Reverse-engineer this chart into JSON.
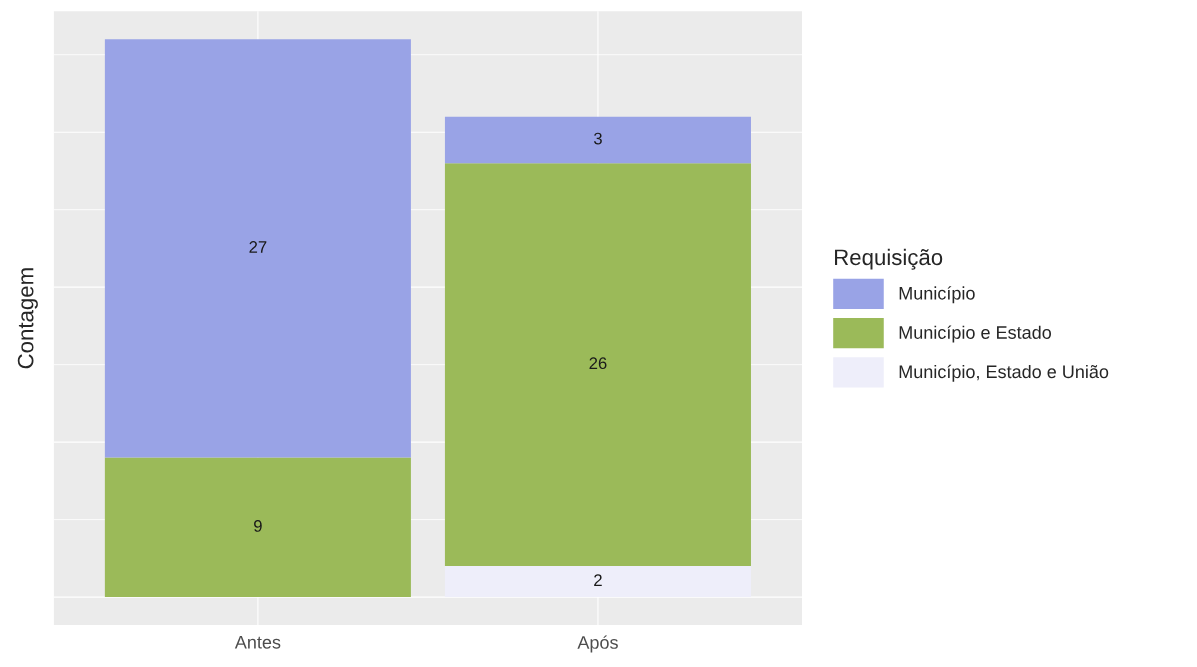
{
  "chart_data": {
    "type": "bar",
    "stacked": true,
    "ylabel": "Contagem",
    "legend_title": "Requisição",
    "categories": [
      "Antes",
      "Após"
    ],
    "series": [
      {
        "name": "Município, Estado e União",
        "color": "#eeeefa",
        "values": [
          null,
          2
        ]
      },
      {
        "name": "Município e Estado",
        "color": "#9bba59",
        "values": [
          9,
          26
        ]
      },
      {
        "name": "Município",
        "color": "#99a3e6",
        "values": [
          27,
          3
        ]
      }
    ],
    "ylim": [
      -1.8,
      37.8
    ],
    "yticks": [
      {
        "value": 0,
        "label": null
      },
      {
        "value": 10,
        "label": null
      },
      {
        "value": 20,
        "label": null
      },
      {
        "value": 30,
        "label": null
      }
    ],
    "data_labels": true,
    "grid": true,
    "legend": "right"
  }
}
